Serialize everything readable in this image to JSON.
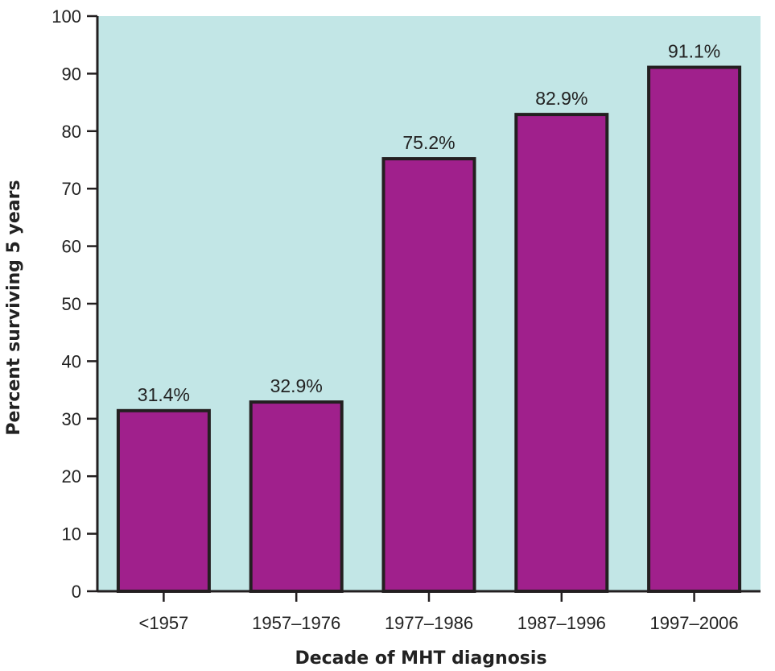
{
  "chart_data": {
    "type": "bar",
    "title": "",
    "xlabel": "Decade of MHT diagnosis",
    "ylabel": "Percent surviving 5 years",
    "categories": [
      "<1957",
      "1957–1976",
      "1977–1986",
      "1987–1996",
      "1997–2006"
    ],
    "values": [
      31.4,
      32.9,
      75.2,
      82.9,
      91.1
    ],
    "data_labels": [
      "31.4%",
      "32.9%",
      "75.2%",
      "82.9%",
      "91.1%"
    ],
    "ylim": [
      0,
      100
    ],
    "yticks": [
      0,
      10,
      20,
      30,
      40,
      50,
      60,
      70,
      80,
      90,
      100
    ],
    "grid": false,
    "legend": "none",
    "colors": {
      "plot_background": "#c2e6e6",
      "bar_fill": "#a0208c",
      "bar_stroke": "#231f20",
      "axis": "#231f20"
    }
  }
}
